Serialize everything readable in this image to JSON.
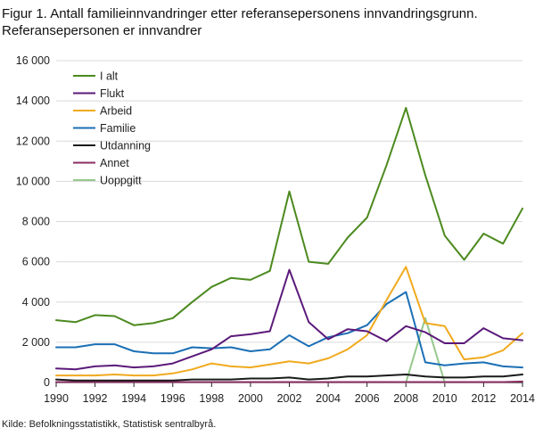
{
  "title_line1": "Figur 1. Antall familieinnvandringer etter referansepersonens innvandringsgrunn.",
  "title_line2": "Referansepersonen er innvandrer",
  "source": "Kilde: Befolkningsstatistikk, Statistisk sentralbyrå.",
  "chart_data": {
    "type": "line",
    "x": [
      1990,
      1991,
      1992,
      1993,
      1994,
      1995,
      1996,
      1997,
      1998,
      1999,
      2000,
      2001,
      2002,
      2003,
      2004,
      2005,
      2006,
      2007,
      2008,
      2009,
      2010,
      2011,
      2012,
      2013,
      2014
    ],
    "xticks": [
      1990,
      1992,
      1994,
      1996,
      1998,
      2000,
      2002,
      2004,
      2006,
      2008,
      2010,
      2012,
      2014
    ],
    "xtick_labels": [
      "1990",
      "1992",
      "1994",
      "1996",
      "1998",
      "2000",
      "2002",
      "2004",
      "2006",
      "2008",
      "2010",
      "2012",
      "2014"
    ],
    "yticks": [
      0,
      2000,
      4000,
      6000,
      8000,
      10000,
      12000,
      14000,
      16000
    ],
    "ytick_labels": [
      "0",
      "2 000",
      "4 000",
      "6 000",
      "8 000",
      "10 000",
      "12 000",
      "14 000",
      "16 000"
    ],
    "xlim": [
      1990,
      2014
    ],
    "ylim": [
      0,
      16000
    ],
    "grid": "horizontal",
    "legend_position": "top-left",
    "series": [
      {
        "name": "I alt",
        "color": "#4c8a1f",
        "values": [
          3100,
          3000,
          3350,
          3300,
          2850,
          2950,
          3200,
          4000,
          4750,
          5200,
          5100,
          5550,
          9500,
          6000,
          5900,
          7200,
          8200,
          10800,
          13650,
          10300,
          7300,
          6100,
          7400,
          6900,
          8650
        ]
      },
      {
        "name": "Flukt",
        "color": "#5b1a7a",
        "values": [
          700,
          650,
          800,
          850,
          750,
          800,
          950,
          1300,
          1650,
          2300,
          2400,
          2550,
          5600,
          3000,
          2150,
          2650,
          2550,
          2050,
          2800,
          2500,
          1950,
          1950,
          2700,
          2200,
          2100
        ]
      },
      {
        "name": "Arbeid",
        "color": "#f0aa1e",
        "values": [
          350,
          350,
          350,
          400,
          350,
          350,
          450,
          650,
          950,
          800,
          750,
          900,
          1050,
          950,
          1200,
          1650,
          2350,
          4100,
          5750,
          2950,
          2800,
          1150,
          1250,
          1600,
          2450
        ]
      },
      {
        "name": "Familie",
        "color": "#1b6fb5",
        "values": [
          1750,
          1750,
          1900,
          1900,
          1550,
          1450,
          1450,
          1750,
          1700,
          1750,
          1550,
          1650,
          2350,
          1800,
          2250,
          2450,
          2850,
          3900,
          4500,
          1000,
          850,
          950,
          1000,
          800,
          750
        ]
      },
      {
        "name": "Utdanning",
        "color": "#1a1a1a",
        "values": [
          150,
          100,
          100,
          100,
          100,
          100,
          100,
          150,
          150,
          150,
          200,
          200,
          250,
          150,
          200,
          300,
          300,
          350,
          400,
          300,
          250,
          250,
          300,
          300,
          400
        ]
      },
      {
        "name": "Annet",
        "color": "#8a2d62",
        "values": [
          20,
          20,
          20,
          20,
          20,
          20,
          20,
          20,
          20,
          20,
          20,
          20,
          20,
          20,
          20,
          20,
          20,
          20,
          20,
          20,
          20,
          20,
          20,
          20,
          50
        ]
      },
      {
        "name": "Uoppgitt",
        "color": "#96c88c",
        "values": [
          null,
          null,
          null,
          null,
          null,
          null,
          null,
          null,
          null,
          null,
          null,
          null,
          null,
          null,
          null,
          null,
          null,
          null,
          0,
          3200,
          0,
          null,
          null,
          null,
          null
        ]
      }
    ]
  }
}
